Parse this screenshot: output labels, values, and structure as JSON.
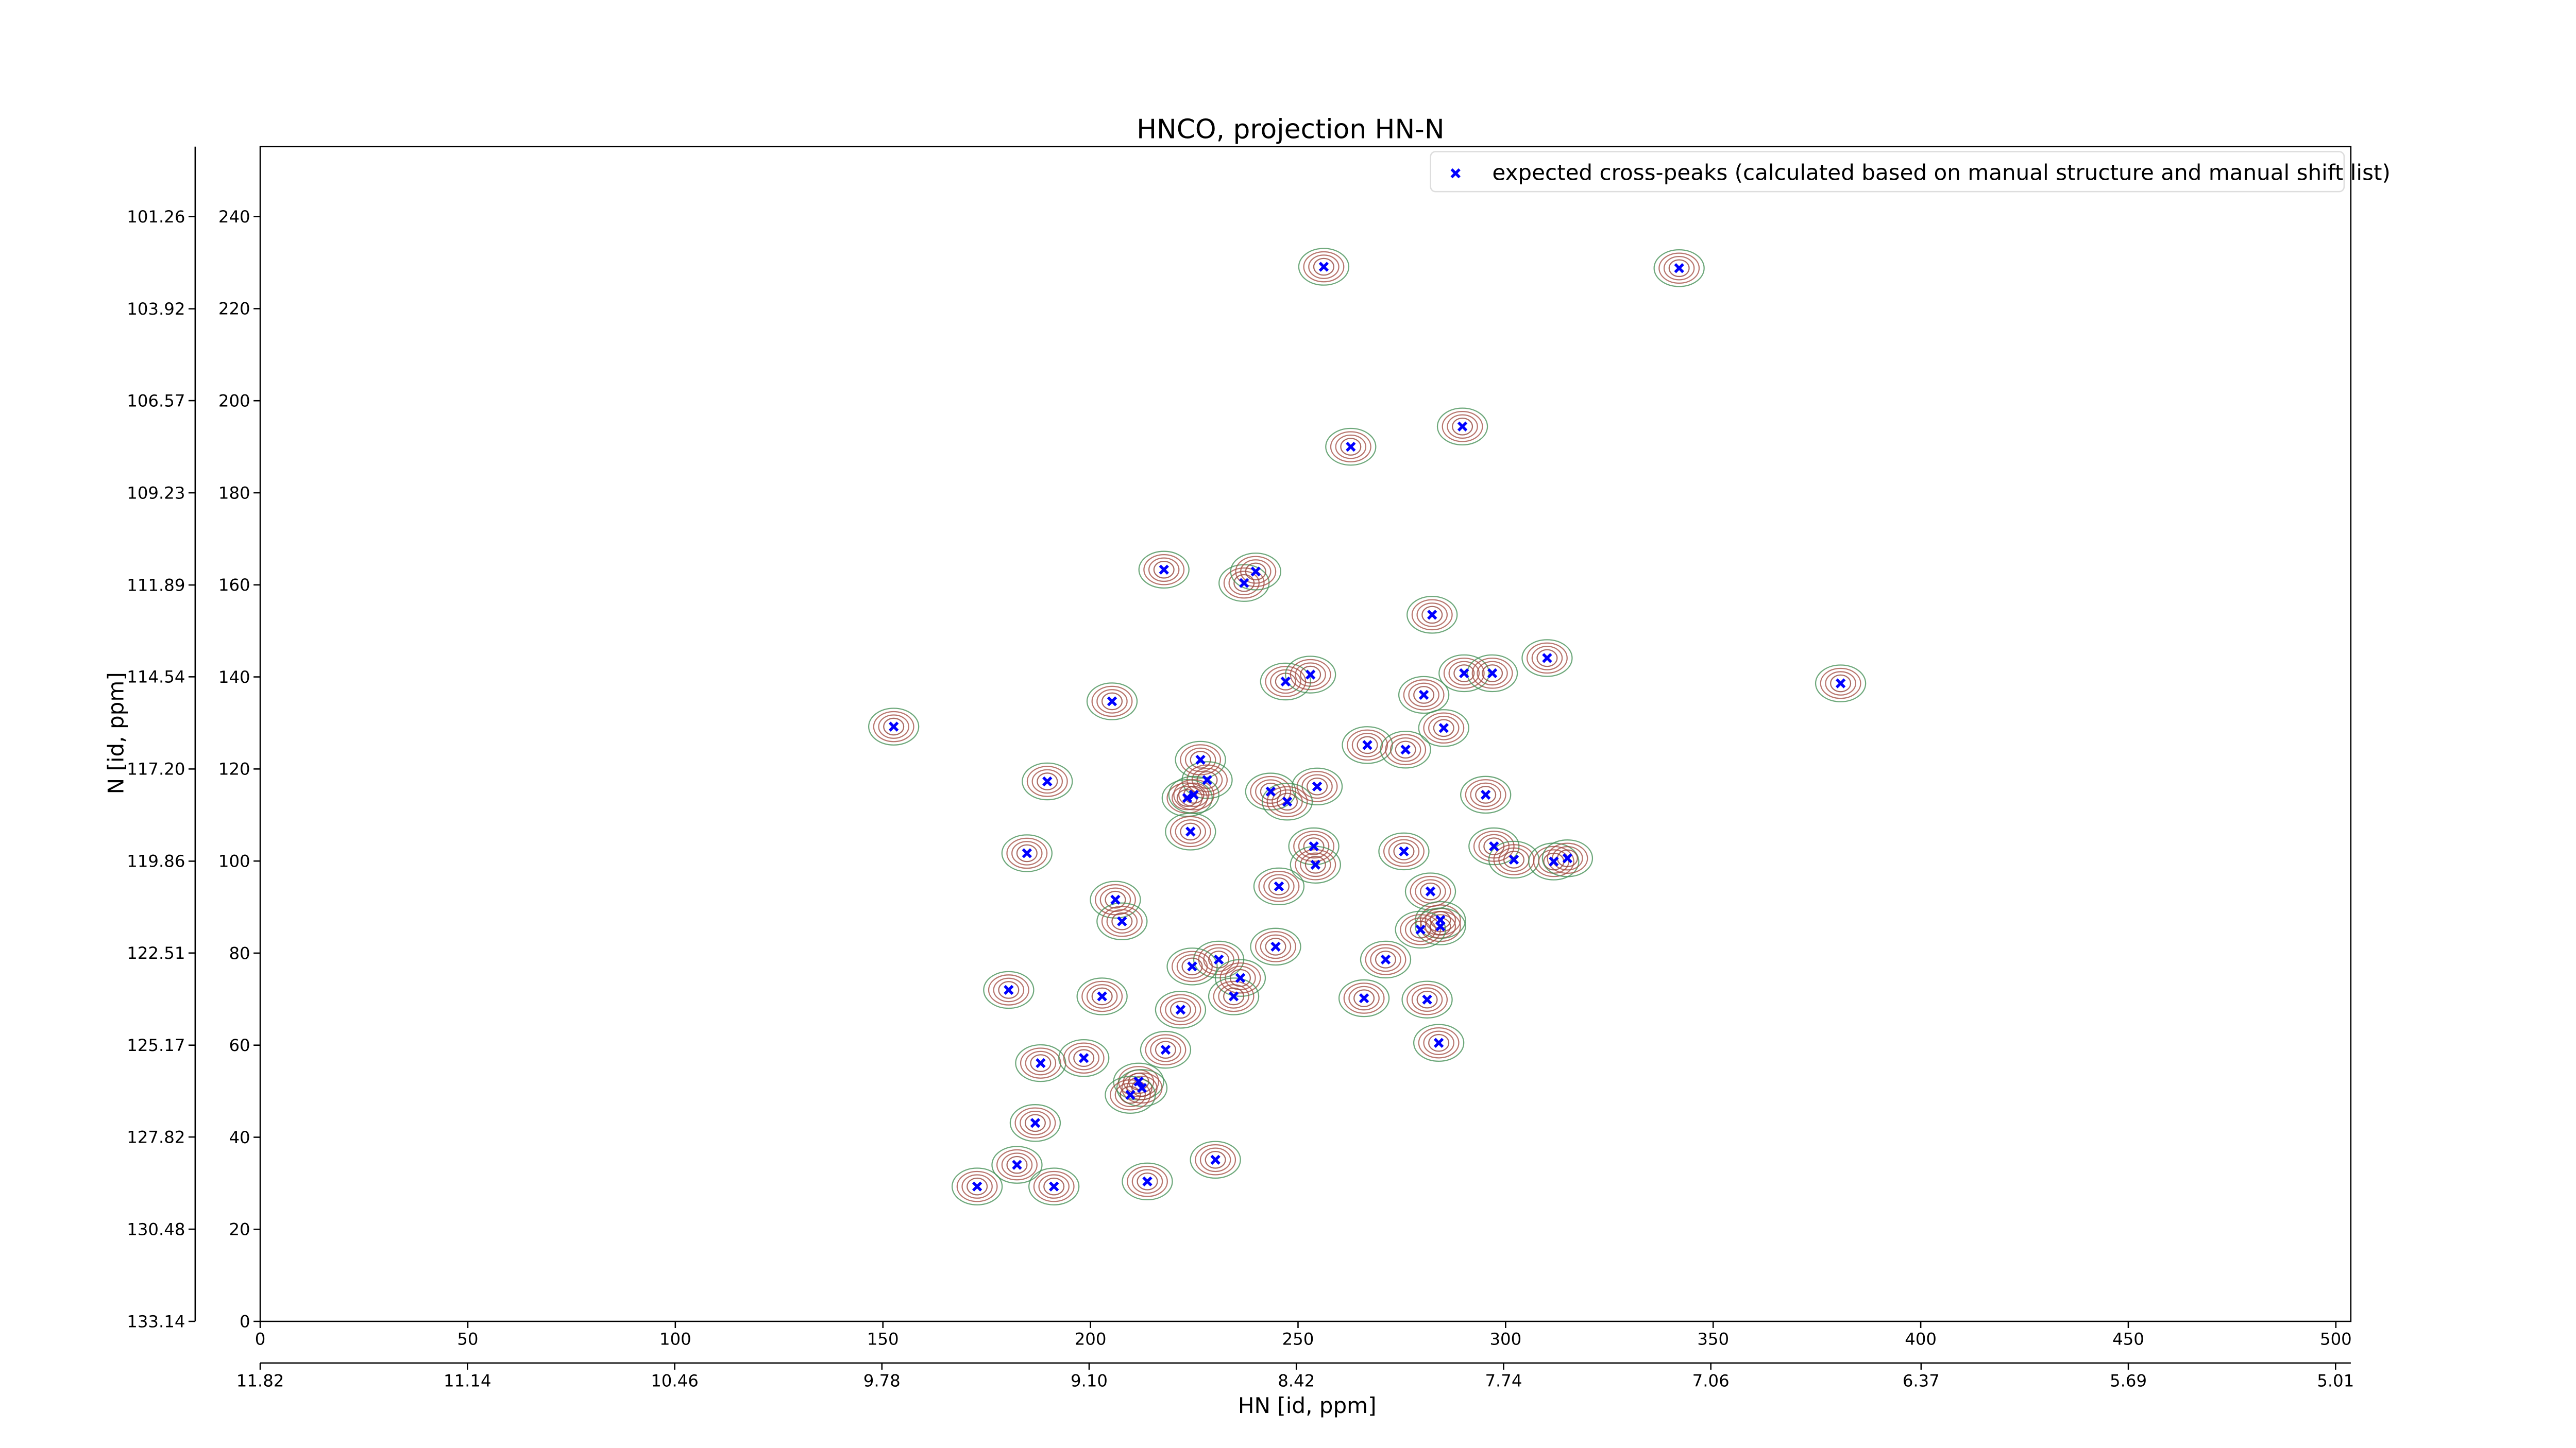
{
  "chart_data": {
    "type": "scatter",
    "title": "HNCO, projection HN-N",
    "xlabel": "HN [id, ppm]",
    "ylabel": "N [id, ppm]",
    "xlim": [
      0,
      503.6
    ],
    "ylim": [
      0,
      255.2
    ],
    "xticks": [
      0,
      50,
      100,
      150,
      200,
      250,
      300,
      350,
      400,
      450,
      500
    ],
    "yticks": [
      0,
      20,
      40,
      60,
      80,
      100,
      120,
      140,
      160,
      180,
      200,
      220,
      240
    ],
    "x2lim": [
      11.82,
      4.96
    ],
    "x2ticks": [
      11.82,
      11.14,
      10.46,
      9.78,
      {
        "value": 9.1,
        "label": "9.10"
      },
      8.42,
      7.74,
      7.06,
      6.37,
      5.69,
      5.01
    ],
    "y2lim": [
      133.14,
      99.24
    ],
    "y2ticks": [
      133.14,
      130.48,
      127.82,
      125.17,
      122.51,
      119.86,
      {
        "value": 117.2,
        "label": "117.20"
      },
      114.54,
      111.89,
      109.23,
      106.57,
      103.92,
      101.26
    ],
    "legend": "upper right",
    "series": [
      {
        "name": "expected cross-peaks (calculated based on manual structure and manual shift list)",
        "color": "#0000ff",
        "x": [
          256.2,
          341.8,
          262.7,
          289.6,
          217.7,
          237.0,
          239.8,
          310.0,
          290.0,
          296.8,
          247.0,
          253.0,
          282.3,
          280.3,
          380.7,
          205.2,
          152.6,
          285.1,
          266.7,
          275.9,
          226.5,
          228.1,
          189.6,
          243.4,
          254.6,
          223.3,
          224.9,
          247.4,
          295.2,
          224.1,
          184.7,
          253.8,
          275.5,
          297.2,
          302.0,
          311.6,
          314.9,
          254.2,
          206.0,
          245.4,
          281.9,
          207.6,
          284.3,
          284.3,
          279.5,
          244.6,
          230.9,
          224.5,
          271.1,
          236.1,
          180.3,
          234.5,
          202.8,
          265.9,
          281.1,
          221.7,
          283.9,
          218.1,
          188.0,
          198.4,
          211.6,
          212.4,
          209.6,
          186.7,
          182.3,
          230.1,
          172.7,
          191.2,
          213.7
        ],
        "values": [
          229.1,
          228.8,
          190.0,
          194.4,
          163.3,
          160.4,
          162.9,
          144.1,
          140.8,
          140.8,
          139.0,
          140.5,
          153.5,
          136.1,
          138.6,
          134.7,
          129.2,
          128.9,
          125.2,
          124.2,
          122.0,
          117.6,
          117.3,
          115.1,
          116.2,
          113.7,
          114.4,
          112.9,
          114.4,
          106.4,
          101.7,
          103.2,
          102.1,
          103.2,
          100.3,
          99.9,
          100.6,
          99.2,
          91.6,
          94.5,
          93.4,
          86.9,
          87.2,
          85.8,
          85.1,
          81.4,
          78.6,
          77.1,
          78.6,
          74.6,
          72.0,
          70.6,
          70.6,
          70.2,
          69.9,
          67.7,
          60.5,
          59.0,
          56.1,
          57.2,
          52.1,
          50.7,
          49.2,
          43.1,
          34.0,
          35.1,
          29.3,
          29.3,
          30.4
        ]
      }
    ]
  }
}
